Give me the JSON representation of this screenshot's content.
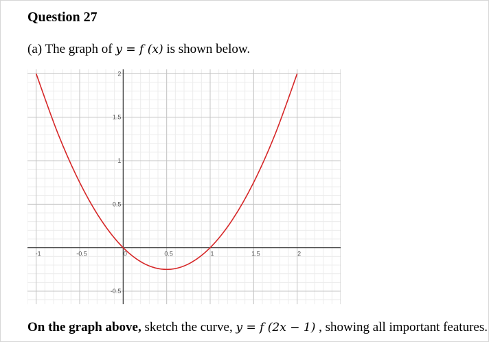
{
  "question": {
    "title": "Question 27",
    "part_a": {
      "prefix": "(a) The graph of",
      "function_expr": "y = f (x)",
      "suffix": "is shown below."
    },
    "instruction": {
      "bold_prefix": "On the graph above,",
      "text_before": "sketch the curve,",
      "function_expr": "y = f (2x − 1)",
      "text_after": ", showing all important features."
    }
  },
  "chart_data": {
    "type": "line",
    "title": "",
    "xlabel": "",
    "ylabel": "",
    "xlim": [
      -1.1,
      2.5
    ],
    "ylim": [
      -0.65,
      2.05
    ],
    "grid": true,
    "x_ticks": [
      {
        "value": -1,
        "label": "-1"
      },
      {
        "value": -0.5,
        "label": "-0.5"
      },
      {
        "value": 0,
        "label": "0"
      },
      {
        "value": 0.5,
        "label": "0.5"
      },
      {
        "value": 1,
        "label": "1"
      },
      {
        "value": 1.5,
        "label": "1.5"
      },
      {
        "value": 2,
        "label": "2"
      }
    ],
    "y_ticks": [
      {
        "value": 2,
        "label": "2"
      },
      {
        "value": 1.5,
        "label": "1.5"
      },
      {
        "value": 1,
        "label": "1"
      },
      {
        "value": 0.5,
        "label": "0.5"
      },
      {
        "value": -0.5,
        "label": "-0.5"
      }
    ],
    "series": [
      {
        "color": "#d62728",
        "x": [
          -1.0,
          -0.75,
          -0.5,
          -0.25,
          0.0,
          0.25,
          0.5,
          0.75,
          1.0,
          1.25,
          1.5,
          1.75,
          2.0
        ],
        "y": [
          2.0,
          1.3125,
          0.75,
          0.3125,
          0.0,
          -0.1875,
          -0.25,
          -0.1875,
          0.0,
          0.3125,
          0.75,
          1.3125,
          2.0
        ]
      }
    ]
  }
}
